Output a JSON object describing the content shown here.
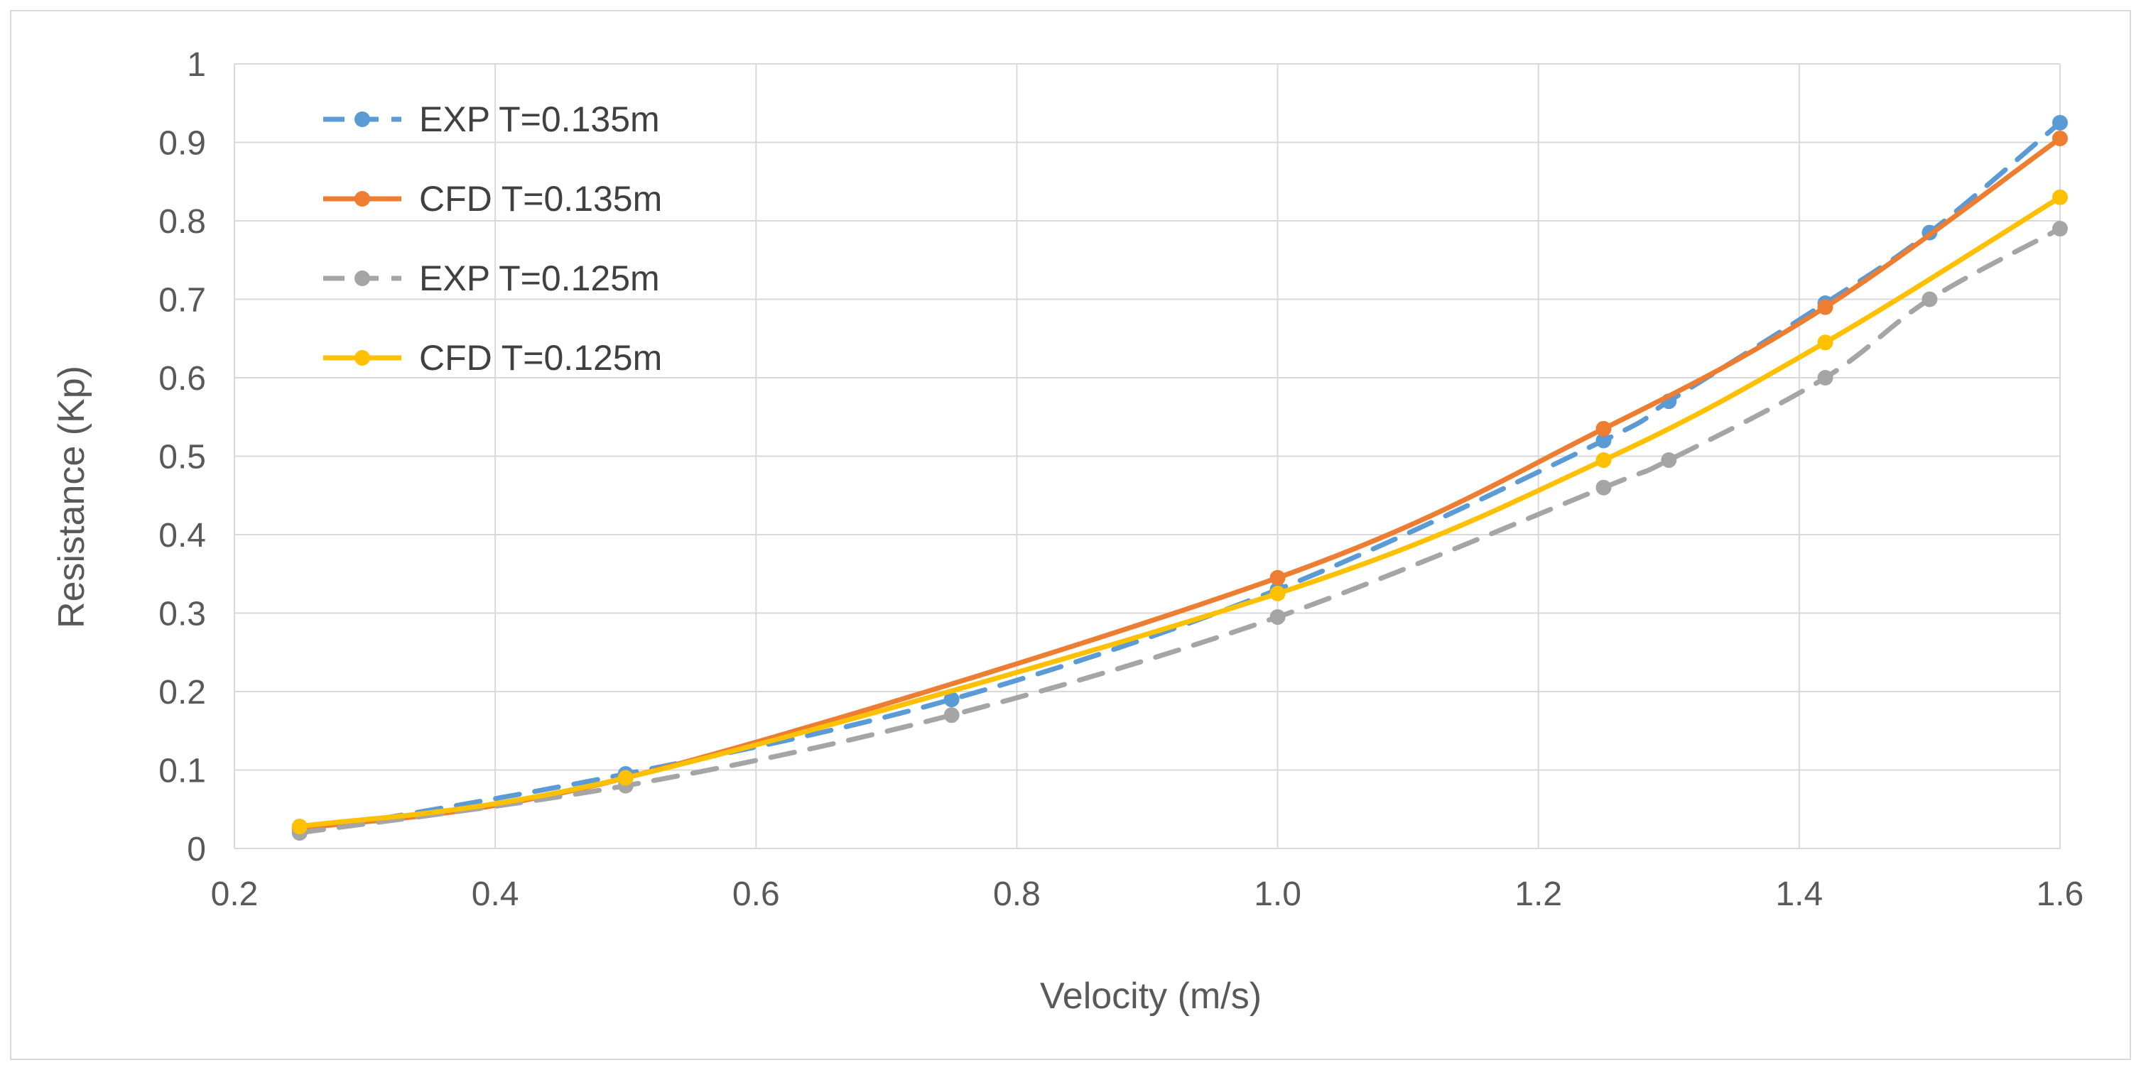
{
  "chart_data": {
    "type": "line",
    "title": "",
    "xlabel": "Velocity (m/s)",
    "ylabel": "Resistance (Kp)",
    "xlim": [
      0.2,
      1.6
    ],
    "ylim": [
      0,
      1
    ],
    "x_ticks": [
      "0.2",
      "0.4",
      "0.6",
      "0.8",
      "1.0",
      "1.2",
      "1.4",
      "1.6"
    ],
    "x_tick_values": [
      0.2,
      0.4,
      0.6,
      0.8,
      1.0,
      1.2,
      1.4,
      1.6
    ],
    "y_ticks": [
      "0",
      "0.1",
      "0.2",
      "0.3",
      "0.4",
      "0.5",
      "0.6",
      "0.7",
      "0.8",
      "0.9",
      "1"
    ],
    "y_tick_values": [
      0,
      0.1,
      0.2,
      0.3,
      0.4,
      0.5,
      0.6,
      0.7,
      0.8,
      0.9,
      1.0
    ],
    "grid": true,
    "legend_position": "top-left",
    "series": [
      {
        "name": "EXP T=0.135m",
        "color": "#5b9bd5",
        "dashed": true,
        "x": [
          0.25,
          0.5,
          0.75,
          1.0,
          1.25,
          1.3,
          1.42,
          1.5,
          1.6
        ],
        "y": [
          0.02,
          0.095,
          0.19,
          0.33,
          0.52,
          0.57,
          0.695,
          0.785,
          0.925
        ]
      },
      {
        "name": "CFD T=0.135m",
        "color": "#ed7d31",
        "dashed": false,
        "x": [
          0.25,
          0.5,
          1.0,
          1.25,
          1.42,
          1.6
        ],
        "y": [
          0.025,
          0.09,
          0.345,
          0.535,
          0.69,
          0.905
        ]
      },
      {
        "name": "EXP T=0.125m",
        "color": "#a5a5a5",
        "dashed": true,
        "x": [
          0.25,
          0.5,
          0.75,
          1.0,
          1.25,
          1.3,
          1.42,
          1.5,
          1.6
        ],
        "y": [
          0.02,
          0.08,
          0.17,
          0.295,
          0.46,
          0.495,
          0.6,
          0.7,
          0.79
        ]
      },
      {
        "name": "CFD T=0.125m",
        "color": "#ffc000",
        "dashed": false,
        "x": [
          0.25,
          0.5,
          1.0,
          1.25,
          1.42,
          1.6
        ],
        "y": [
          0.028,
          0.09,
          0.325,
          0.495,
          0.645,
          0.83
        ]
      }
    ]
  }
}
